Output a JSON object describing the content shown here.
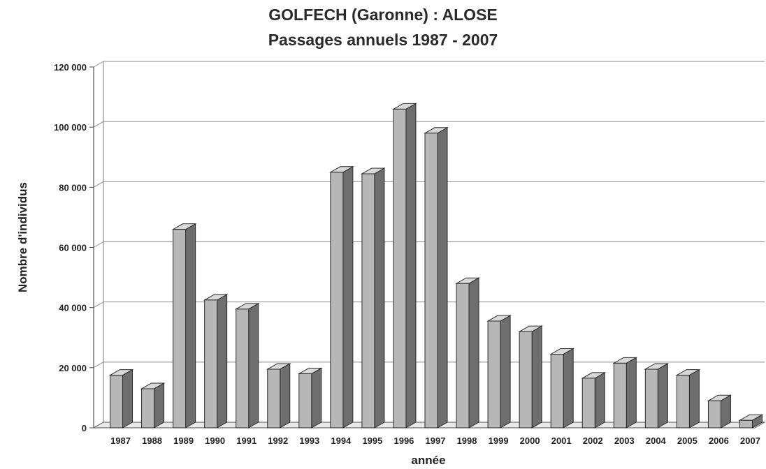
{
  "chart_data": {
    "type": "bar",
    "title": "GOLFECH (Garonne) : ALOSE",
    "subtitle": "Passages annuels 1987 - 2007",
    "xlabel": "année",
    "ylabel": "Nombre d'individus",
    "ylim": [
      0,
      120000
    ],
    "yticks": [
      "0",
      "20 000",
      "40 000",
      "60 000",
      "80 000",
      "100 000",
      "120 000"
    ],
    "ytick_values": [
      0,
      20000,
      40000,
      60000,
      80000,
      100000,
      120000
    ],
    "grid": true,
    "style": "3d-bars",
    "categories": [
      "1987",
      "1988",
      "1989",
      "1990",
      "1991",
      "1992",
      "1993",
      "1994",
      "1995",
      "1996",
      "1997",
      "1998",
      "1999",
      "2000",
      "2001",
      "2002",
      "2003",
      "2004",
      "2005",
      "2006",
      "2007"
    ],
    "values": [
      17500,
      13000,
      66000,
      42500,
      39500,
      19500,
      18000,
      85000,
      84500,
      106000,
      98000,
      48000,
      35500,
      32000,
      24500,
      16500,
      21500,
      19500,
      17500,
      9000,
      2500
    ],
    "colors": {
      "bar_front": "#b7b7b7",
      "bar_side": "#6e6e6e",
      "bar_top": "#d9d9d9",
      "bar_edge": "#2b2b2b",
      "grid": "#8a8a8a"
    }
  }
}
